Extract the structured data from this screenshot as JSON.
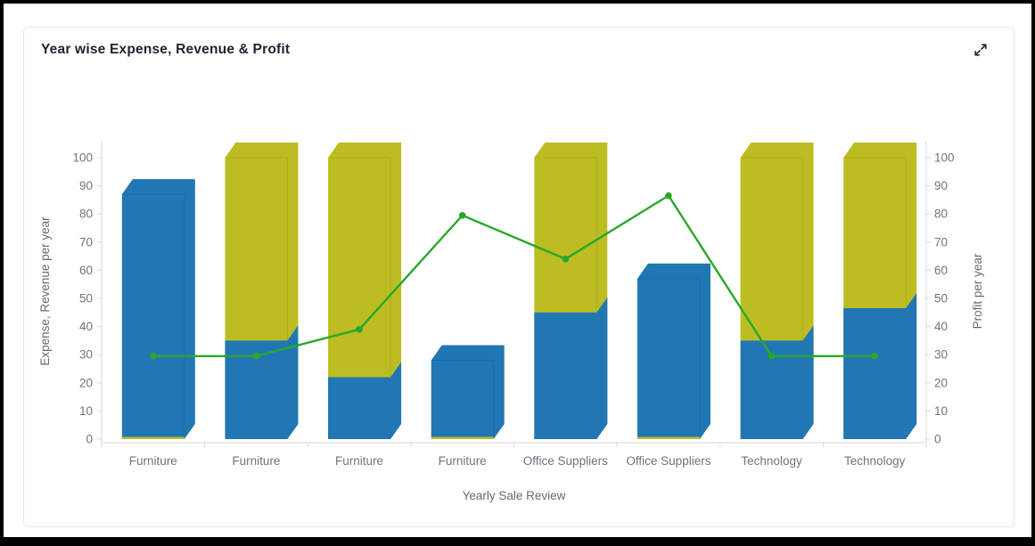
{
  "card": {
    "title": "Year wise Expense, Revenue & Profit",
    "expand_icon": "expand-diagonal-arrows"
  },
  "chart_data": {
    "type": "bar",
    "style": "3d-columns-with-line-overlay",
    "categories": [
      "Furniture",
      "Furniture",
      "Furniture",
      "Furniture",
      "Office Suppliers",
      "Office Suppliers",
      "Technology",
      "Technology"
    ],
    "series": [
      {
        "name": "Expense",
        "type": "bar",
        "axis": "left",
        "color": "#2077b4",
        "values": [
          87,
          35,
          22,
          28,
          45,
          57,
          35,
          46.5
        ]
      },
      {
        "name": "Revenue",
        "type": "bar",
        "axis": "left",
        "color": "#bcbd22",
        "values": [
          0.5,
          100,
          100,
          0.5,
          100,
          0.5,
          100,
          100
        ],
        "note": "values shown as 100 are clipped at the left-axis maximum"
      },
      {
        "name": "Profit",
        "type": "line",
        "axis": "right",
        "color": "#2aa62c",
        "marker": "circle",
        "values": [
          29.5,
          29.5,
          39,
          79.5,
          64,
          86.5,
          29.5,
          29.5
        ]
      }
    ],
    "xlabel": "Yearly Sale Review",
    "ylabel_left": "Expense, Revenue per year",
    "ylabel_right": "Profit per year",
    "ylim_left": [
      0,
      100
    ],
    "ylim_right": [
      0,
      100
    ],
    "ytick_step": 10,
    "grid": false,
    "legend": "none"
  },
  "colors": {
    "axis_line": "#d9dade",
    "tick_label": "#70737e",
    "axis_title": "#666a75",
    "title_text": "#1d2330",
    "card_border": "#e5e5ea",
    "frame": "#000000"
  }
}
